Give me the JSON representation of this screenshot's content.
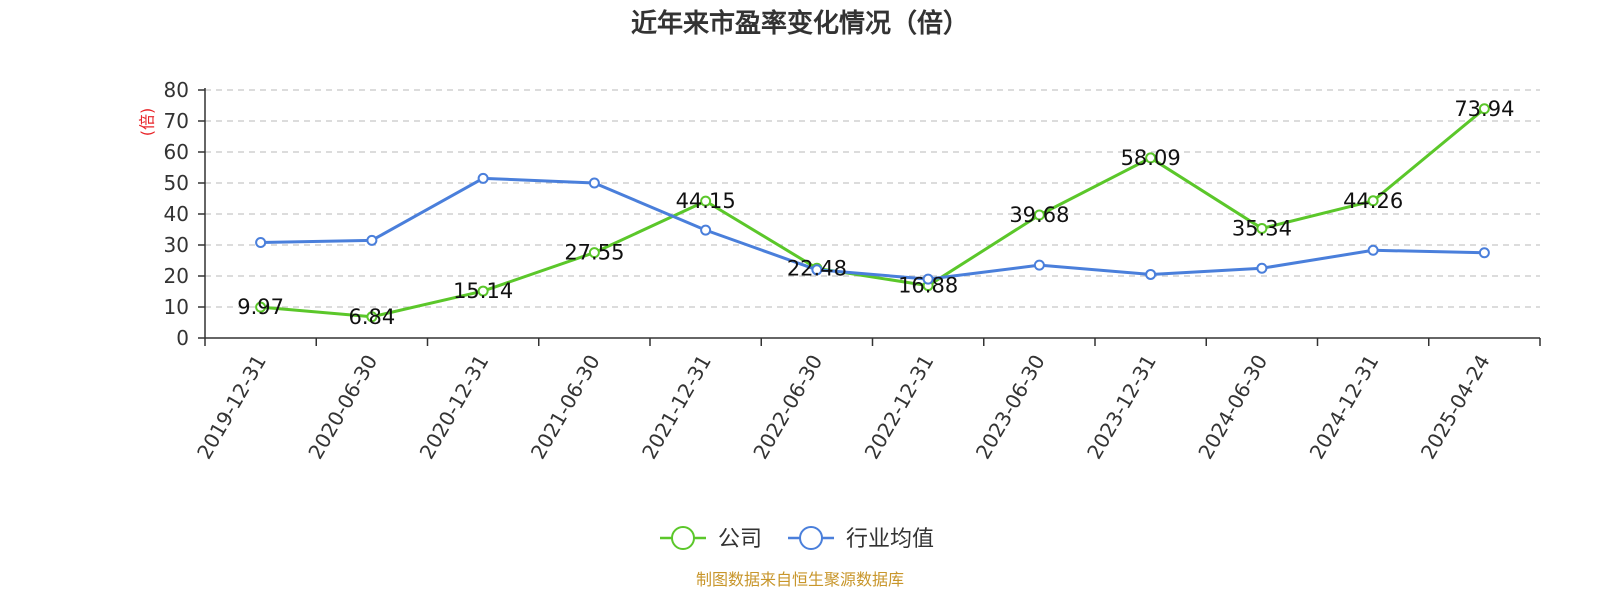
{
  "chart_data": {
    "type": "line",
    "title": "近年来市盈率变化情况（倍）",
    "ylabel": "(倍)",
    "xlabel": "",
    "ylim": [
      0,
      80
    ],
    "yticks": [
      0,
      10,
      20,
      30,
      40,
      50,
      60,
      70,
      80
    ],
    "grid": true,
    "legend_position": "bottom-center",
    "categories": [
      "2019-12-31",
      "2020-06-30",
      "2020-12-31",
      "2021-06-30",
      "2021-12-31",
      "2022-06-30",
      "2022-12-31",
      "2023-06-30",
      "2023-12-31",
      "2024-06-30",
      "2024-12-31",
      "2025-04-24"
    ],
    "series": [
      {
        "name": "公司",
        "color": "#5bc72a",
        "values": [
          9.97,
          6.84,
          15.14,
          27.55,
          44.15,
          22.48,
          16.88,
          39.68,
          58.09,
          35.34,
          44.26,
          73.94
        ],
        "data_labels": [
          "9.97",
          "6.84",
          "15.14",
          "27.55",
          "44.15",
          "22.48",
          "16.88",
          "39.68",
          "58.09",
          "35.34",
          "44.26",
          "73.94"
        ]
      },
      {
        "name": "行业均值",
        "color": "#4a7fdb",
        "values": [
          30.8,
          31.5,
          51.5,
          50.0,
          34.8,
          22.0,
          19.0,
          23.5,
          20.5,
          22.5,
          28.3,
          27.5
        ]
      }
    ],
    "source": "制图数据来自恒生聚源数据库"
  }
}
